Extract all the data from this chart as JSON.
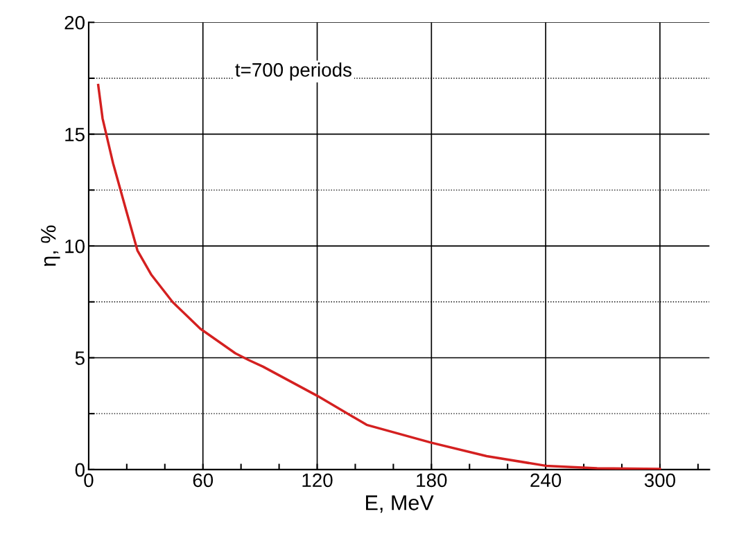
{
  "chart_data": {
    "type": "line",
    "xlabel": "E, MeV",
    "ylabel": "η, %",
    "annotations": [
      "t=700 periods"
    ],
    "x": [
      5,
      7.3,
      12.8,
      20,
      25.6,
      33,
      44,
      58.6,
      77,
      84,
      91.6,
      120,
      146,
      180,
      209,
      240,
      267,
      300
    ],
    "series": [
      {
        "color": "#d42020",
        "values": [
          17.2,
          15.7,
          13.7,
          11.5,
          9.8,
          8.7,
          7.5,
          6.3,
          5.2,
          4.9,
          4.6,
          3.3,
          2.0,
          1.2,
          0.6,
          0.17,
          0.06,
          0.03
        ]
      }
    ],
    "xlim": [
      0,
      326
    ],
    "ylim": [
      0,
      20
    ],
    "xticks": [
      0,
      {
        "value": 20,
        "label": null
      },
      {
        "value": 40,
        "label": null
      },
      60,
      {
        "value": 80,
        "label": null
      },
      {
        "value": 100,
        "label": null
      },
      120,
      {
        "value": 140,
        "label": null
      },
      {
        "value": 160,
        "label": null
      },
      180,
      {
        "value": 200,
        "label": null
      },
      {
        "value": 220,
        "label": null
      },
      240,
      {
        "value": 260,
        "label": null
      },
      {
        "value": 280,
        "label": null
      },
      300,
      {
        "value": 320,
        "label": null
      }
    ],
    "yticks": [
      0,
      {
        "value": 2.5,
        "label": null
      },
      5,
      {
        "value": 7.5,
        "label": null
      },
      10,
      {
        "value": 12.5,
        "label": null
      },
      15,
      {
        "value": 17.5,
        "label": null
      },
      20
    ],
    "grid": true,
    "marker": "none",
    "line_style": "solid"
  }
}
